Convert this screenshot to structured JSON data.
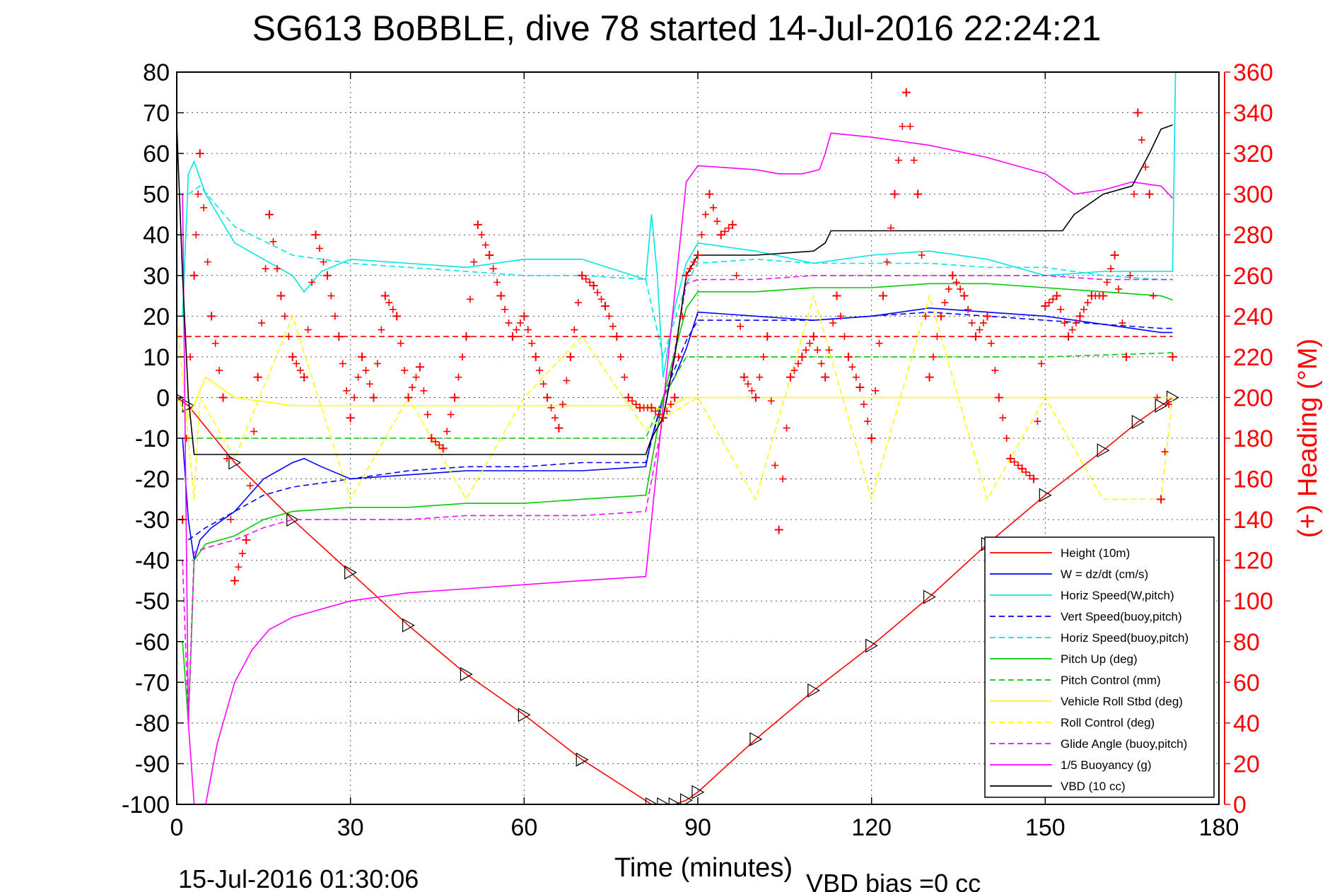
{
  "chart_data": {
    "type": "line",
    "title": "SG613 BoBBLE, dive 78 started 14-Jul-2016 22:24:21",
    "xlabel": "Time (minutes)",
    "ylabel_right": "(+) Heading (°M)",
    "footer_left": "15-Jul-2016 01:30:06",
    "footer_right": "VBD bias =0 cc",
    "xlim": [
      0,
      180
    ],
    "ylim": [
      -100,
      80
    ],
    "ylim_right": [
      0,
      360
    ],
    "x_ticks": [
      "0",
      "30",
      "60",
      "90",
      "120",
      "150",
      "180"
    ],
    "y_ticks": [
      "80",
      "70",
      "60",
      "50",
      "40",
      "30",
      "20",
      "10",
      "0",
      "-10",
      "-20",
      "-30",
      "-40",
      "-50",
      "-60",
      "-70",
      "-80",
      "-90",
      "-100"
    ],
    "y_ticks_right": [
      "360",
      "340",
      "320",
      "300",
      "280",
      "260",
      "240",
      "220",
      "200",
      "180",
      "160",
      "140",
      "120",
      "100",
      "80",
      "60",
      "40",
      "20",
      "0"
    ],
    "grid": true,
    "legend_position": "bottom-right",
    "series": [
      {
        "name": "Height (10m)",
        "color": "#ff0000",
        "style": "solid",
        "x": [
          0,
          2,
          10,
          20,
          30,
          40,
          50,
          60,
          70,
          82,
          84,
          86,
          88,
          90,
          100,
          110,
          120,
          130,
          140,
          150,
          160,
          166,
          170,
          172
        ],
        "y": [
          0,
          -2,
          -16,
          -30,
          -43,
          -56,
          -68,
          -78,
          -89,
          -100,
          -100,
          -100,
          -99,
          -97,
          -84,
          -72,
          -61,
          -49,
          -36,
          -24,
          -13,
          -6,
          -2,
          0
        ]
      },
      {
        "name": "W = dz/dt (cm/s)",
        "color": "#0000ff",
        "style": "solid",
        "x": [
          1,
          2,
          3,
          4,
          6,
          10,
          15,
          20,
          22,
          25,
          30,
          40,
          50,
          60,
          70,
          81,
          82,
          84,
          86,
          88,
          90,
          100,
          110,
          120,
          130,
          140,
          150,
          160,
          165,
          170,
          172
        ],
        "y": [
          -10,
          -30,
          -40,
          -35,
          -32,
          -28,
          -20,
          -16,
          -15,
          -17,
          -20,
          -19,
          -18,
          -18,
          -18,
          -17,
          -10,
          0,
          5,
          12,
          21,
          20,
          19,
          20,
          22,
          21,
          20,
          18,
          17,
          16,
          16
        ]
      },
      {
        "name": "Horiz Speed(W,pitch)",
        "color": "#00e5e5",
        "style": "solid",
        "x": [
          1,
          2,
          3,
          5,
          10,
          15,
          20,
          22,
          25,
          30,
          40,
          50,
          60,
          70,
          81,
          82,
          83,
          84,
          86,
          88,
          90,
          95,
          100,
          110,
          120,
          130,
          140,
          150,
          160,
          170,
          172,
          172.5
        ],
        "y": [
          20,
          55,
          58,
          50,
          38,
          34,
          30,
          26,
          31,
          34,
          33,
          32,
          34,
          34,
          29,
          45,
          30,
          5,
          22,
          33,
          38,
          37,
          36,
          33,
          35,
          36,
          34,
          30,
          31,
          31,
          31,
          80
        ]
      },
      {
        "name": "Vert Speed(buoy,pitch)",
        "color": "#0000ff",
        "style": "dashed",
        "x": [
          2,
          5,
          10,
          15,
          20,
          30,
          40,
          50,
          60,
          70,
          81,
          84,
          88,
          90,
          100,
          110,
          120,
          130,
          140,
          150,
          160,
          170,
          172
        ],
        "y": [
          -35,
          -32,
          -28,
          -24,
          -22,
          -20,
          -18,
          -17,
          -17,
          -16,
          -16,
          0,
          14,
          19,
          19,
          19,
          20,
          21,
          20,
          19,
          18,
          17,
          17
        ]
      },
      {
        "name": "Horiz Speed(buoy,pitch)",
        "color": "#00e5e5",
        "style": "dashed",
        "x": [
          2,
          4,
          10,
          20,
          30,
          40,
          50,
          60,
          70,
          81,
          84,
          88,
          90,
          100,
          110,
          120,
          130,
          140,
          150,
          160,
          170,
          172
        ],
        "y": [
          50,
          52,
          42,
          35,
          33,
          32,
          31,
          30,
          30,
          29,
          10,
          28,
          33,
          34,
          33,
          33,
          33,
          32,
          32,
          30,
          29,
          29
        ]
      },
      {
        "name": "Pitch Up (deg)",
        "color": "#00cc00",
        "style": "solid",
        "x": [
          1,
          2,
          3,
          5,
          10,
          15,
          20,
          30,
          40,
          50,
          60,
          70,
          81,
          84,
          88,
          90,
          100,
          110,
          120,
          130,
          140,
          150,
          160,
          170,
          172
        ],
        "y": [
          -60,
          -80,
          -40,
          -36,
          -34,
          -30,
          -28,
          -27,
          -27,
          -26,
          -26,
          -25,
          -24,
          0,
          22,
          26,
          26,
          27,
          27,
          28,
          28,
          27,
          26,
          25,
          24
        ]
      },
      {
        "name": "Pitch Control (mm)",
        "color": "#00cc00",
        "style": "dashed",
        "x": [
          2,
          5,
          10,
          30,
          60,
          81,
          84,
          88,
          90,
          120,
          150,
          172
        ],
        "y": [
          -10,
          -10,
          -10,
          -10,
          -10,
          -10,
          0,
          10,
          10,
          10,
          10,
          11
        ]
      },
      {
        "name": "Vehicle Roll Stbd (deg)",
        "color": "#ffff00",
        "style": "solid",
        "x": [
          0,
          2,
          5,
          10,
          20,
          30,
          40,
          50,
          60,
          70,
          81,
          84,
          88,
          90,
          100,
          110,
          120,
          130,
          140,
          150,
          160,
          170,
          172
        ],
        "y": [
          0,
          -5,
          5,
          0,
          -2,
          -2,
          -2,
          -2,
          -2,
          -2,
          -2,
          -3,
          0,
          0,
          0,
          0,
          0,
          0,
          0,
          0,
          0,
          0,
          0
        ]
      },
      {
        "name": "Roll Control (deg)",
        "color": "#ffff00",
        "style": "dashed",
        "x": [
          0,
          3,
          4,
          10,
          20,
          30,
          40,
          50,
          60,
          70,
          81,
          84,
          90,
          100,
          110,
          120,
          130,
          140,
          150,
          160,
          170,
          172
        ],
        "y": [
          20,
          -25,
          0,
          -15,
          20,
          -25,
          0,
          -25,
          0,
          15,
          -8,
          -5,
          0,
          -25,
          25,
          -25,
          25,
          -25,
          0,
          -25,
          -25,
          0
        ]
      },
      {
        "name": "Glide Angle (buoy,pitch)",
        "color": "#ff00ff",
        "style": "dashed",
        "x": [
          1,
          2,
          3,
          5,
          10,
          15,
          20,
          30,
          40,
          50,
          60,
          70,
          81,
          84,
          88,
          90,
          100,
          110,
          120,
          130,
          140,
          150,
          160,
          170,
          172
        ],
        "y": [
          -40,
          -80,
          -38,
          -37,
          -35,
          -32,
          -30,
          -30,
          -30,
          -29,
          -29,
          -29,
          -28,
          -5,
          28,
          29,
          29,
          30,
          30,
          30,
          30,
          30,
          29,
          29,
          29
        ]
      },
      {
        "name": "1/5 Buoyancy (g)",
        "color": "#ff00ff",
        "style": "solid",
        "x": [
          1,
          2,
          3,
          5,
          7,
          10,
          13,
          16,
          20,
          30,
          40,
          50,
          60,
          70,
          81,
          82,
          88,
          90,
          100,
          104,
          108,
          111,
          112,
          113,
          120,
          130,
          140,
          150,
          155,
          160,
          165,
          170,
          172
        ],
        "y": [
          50,
          -80,
          -100,
          -100,
          -85,
          -70,
          -62,
          -57,
          -54,
          -50,
          -48,
          -47,
          -46,
          -45,
          -44,
          -30,
          53,
          57,
          56,
          55,
          55,
          56,
          60,
          65,
          64,
          62,
          59,
          55,
          50,
          51,
          53,
          52,
          49
        ]
      },
      {
        "name": "VBD (10 cc)",
        "color": "#000000",
        "style": "solid",
        "x": [
          0,
          1,
          2,
          3,
          5,
          10,
          30,
          60,
          81,
          82,
          84,
          86,
          88,
          90,
          100,
          110,
          112,
          113,
          130,
          140,
          150,
          153,
          155,
          160,
          165,
          168,
          170,
          172
        ],
        "y": [
          67,
          30,
          0,
          -14,
          -14,
          -14,
          -14,
          -14,
          -14,
          -10,
          -5,
          10,
          30,
          35,
          35,
          36,
          38,
          41,
          41,
          41,
          41,
          41,
          45,
          50,
          52,
          60,
          66,
          67
        ]
      },
      {
        "name": "",
        "color": "#ff0000",
        "style": "dashed",
        "x": [
          0,
          172
        ],
        "y": [
          15,
          15
        ]
      },
      {
        "name": "",
        "color": "#ff0000",
        "style": "marker-plus",
        "axis": "right",
        "x": [
          1,
          3,
          4,
          6,
          8,
          10,
          12,
          14,
          16,
          18,
          20,
          22,
          24,
          26,
          28,
          30,
          32,
          34,
          36,
          38,
          40,
          42,
          44,
          46,
          48,
          50,
          52,
          54,
          56,
          58,
          60,
          62,
          64,
          66,
          68,
          70,
          72,
          74,
          76,
          78,
          80,
          82,
          84,
          86,
          88,
          90,
          92,
          94,
          96,
          98,
          100,
          102,
          104,
          106,
          108,
          110,
          112,
          114,
          116,
          118,
          120,
          122,
          124,
          126,
          128,
          130,
          132,
          134,
          136,
          138,
          140,
          142,
          144,
          146,
          148,
          150,
          152,
          154,
          156,
          158,
          160,
          162,
          164,
          166,
          168,
          170,
          172
        ],
        "y": [
          140,
          260,
          320,
          240,
          200,
          110,
          130,
          210,
          290,
          250,
          220,
          210,
          280,
          260,
          230,
          190,
          220,
          200,
          250,
          240,
          200,
          215,
          180,
          175,
          200,
          230,
          285,
          270,
          250,
          230,
          240,
          220,
          200,
          185,
          220,
          260,
          255,
          245,
          230,
          200,
          195,
          195,
          190,
          200,
          260,
          270,
          300,
          280,
          285,
          210,
          200,
          230,
          135,
          210,
          220,
          230,
          210,
          250,
          220,
          205,
          180,
          250,
          300,
          350,
          300,
          210,
          240,
          260,
          250,
          230,
          240,
          200,
          170,
          165,
          160,
          245,
          250,
          230,
          240,
          250,
          250,
          270,
          220,
          340,
          300,
          150,
          220
        ]
      }
    ]
  }
}
